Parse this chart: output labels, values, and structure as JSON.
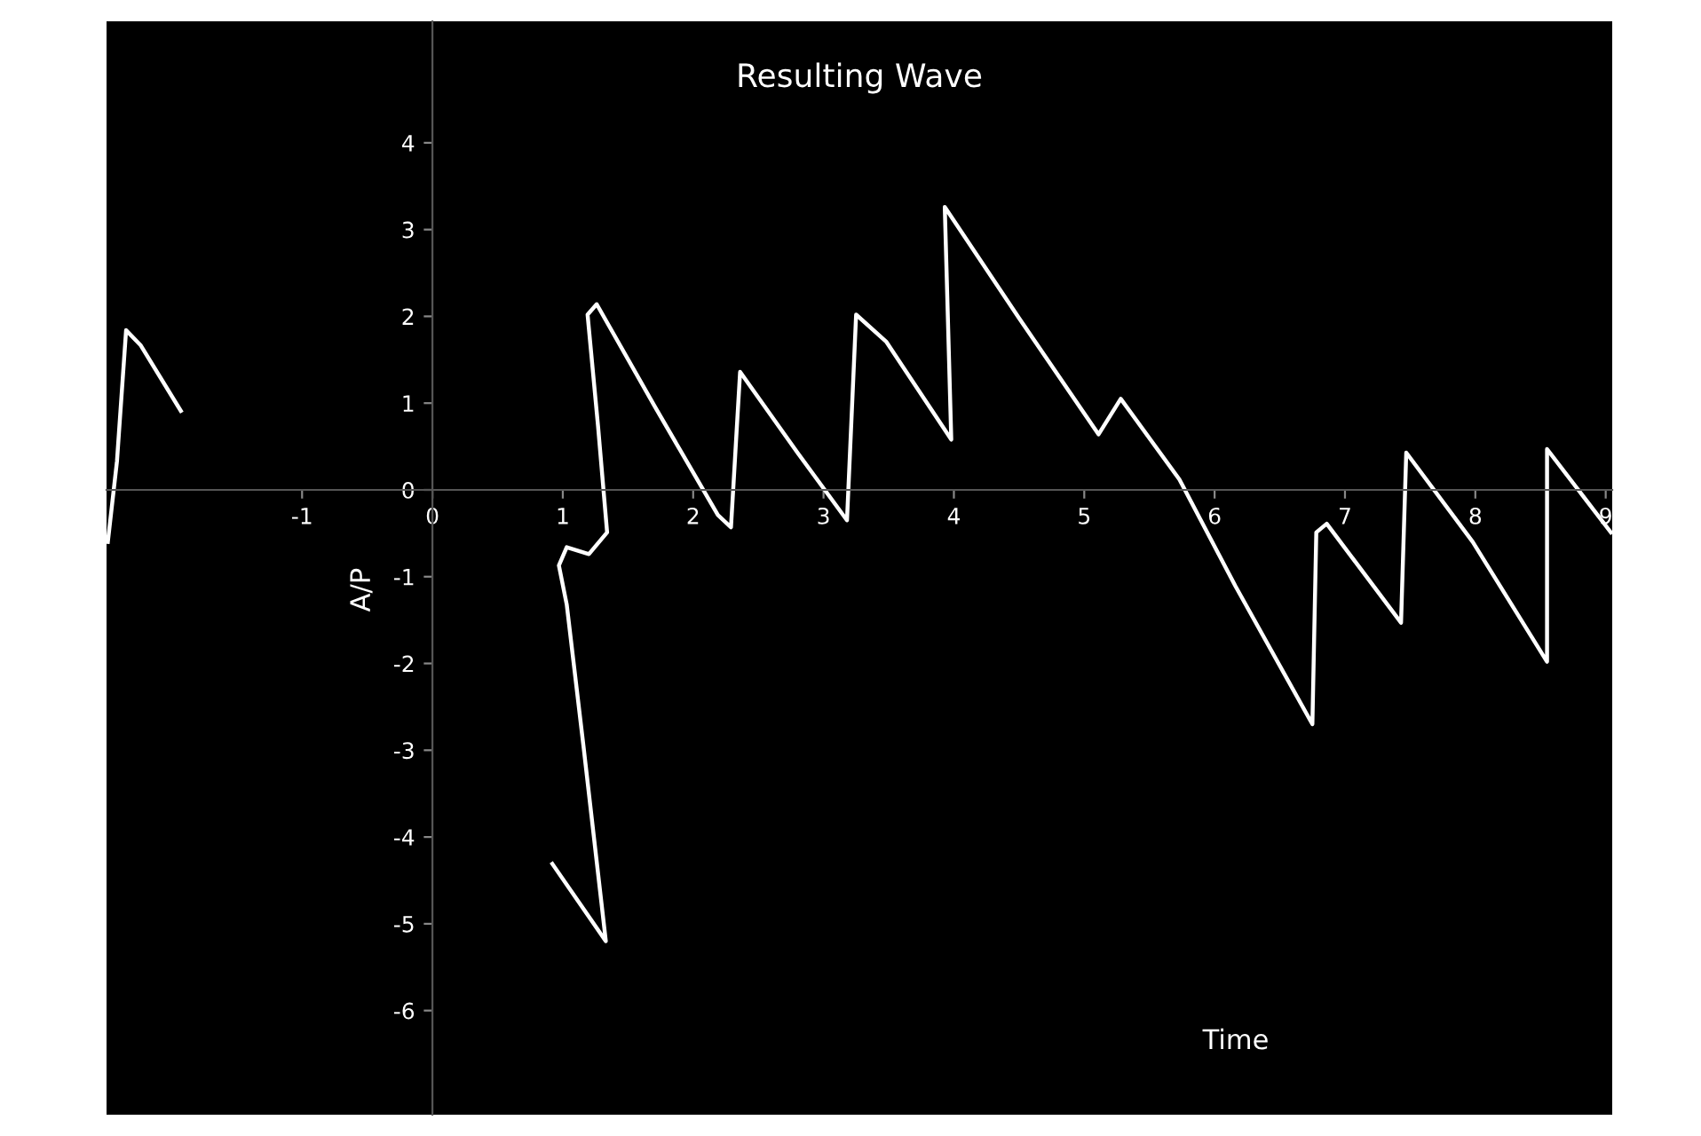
{
  "chart_data": {
    "type": "line",
    "title": "Resulting Wave",
    "xlabel": "Time",
    "ylabel": "A/P",
    "xlim": [
      -2.5,
      9.05
    ],
    "ylim": [
      -7.2,
      5.4
    ],
    "xticks": [
      -1,
      0,
      1,
      2,
      3,
      4,
      5,
      6,
      7,
      8,
      9
    ],
    "yticks": [
      -6,
      -5,
      -4,
      -3,
      -2,
      -1,
      0,
      1,
      2,
      3,
      4
    ],
    "grid": false,
    "legend": false,
    "marker": "none",
    "line_style": "solid",
    "series": [
      {
        "color": "#ffffff",
        "x": [
          -2.49,
          -2.42,
          -2.35,
          -2.24,
          -1.93,
          null,
          0.92,
          1.33,
          1.16,
          1.03,
          0.97,
          1.03,
          1.2,
          1.34,
          1.27,
          1.19,
          1.26,
          1.71,
          2.19,
          2.29,
          2.36,
          2.8,
          3.18,
          3.25,
          3.48,
          3.98,
          3.93,
          4.5,
          5.11,
          5.28,
          5.73,
          6.16,
          6.75,
          6.78,
          6.86,
          7.43,
          7.47,
          7.98,
          8.55,
          8.55,
          9.04
        ],
        "values": [
          -0.6,
          0.33,
          1.84,
          1.67,
          0.91,
          null,
          -4.31,
          -5.2,
          -2.97,
          -1.32,
          -0.87,
          -0.66,
          -0.74,
          -0.49,
          0.74,
          2.02,
          2.14,
          0.95,
          -0.29,
          -0.43,
          1.36,
          0.43,
          -0.35,
          2.02,
          1.71,
          0.58,
          3.26,
          1.98,
          0.64,
          1.05,
          0.12,
          -1.11,
          -2.7,
          -0.49,
          -0.39,
          -1.53,
          0.43,
          -0.6,
          -1.98,
          0.47,
          -0.49
        ]
      }
    ]
  }
}
